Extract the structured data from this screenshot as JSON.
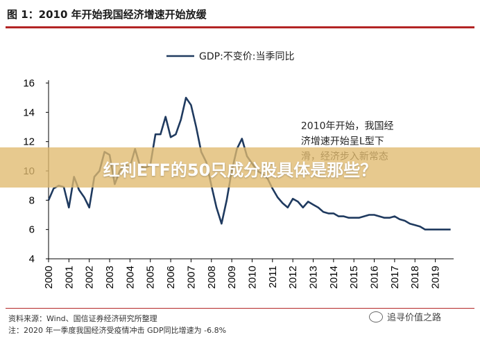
{
  "figure": {
    "title": "图 1：2010 年开始我国经济增速开始放缓",
    "source_line": "资料来源：Wind、国信证券经济研究所整理",
    "note_line": "注：2020 年一季度我国经济受疫情冲击 GDP同比增速为 -6.8%",
    "banner": "红利ETF的50只成分股具体是那些？",
    "watermark": "追寻价值之路",
    "watermark_icon": "wechat-icon"
  },
  "chart_data": {
    "type": "line",
    "title": "",
    "xlabel": "",
    "ylabel": "",
    "xlim": [
      2000,
      2019.9
    ],
    "ylim": [
      4,
      16
    ],
    "yticks": [
      4,
      6,
      8,
      10,
      12,
      14,
      16
    ],
    "xticks": [
      "2000",
      "2001",
      "2002",
      "2003",
      "2004",
      "2005",
      "2006",
      "2007",
      "2008",
      "2009",
      "2010",
      "2011",
      "2012",
      "2013",
      "2014",
      "2015",
      "2016",
      "2017",
      "2018",
      "2019"
    ],
    "grid": false,
    "legend": "top-center",
    "line_color": "#1f3a5f",
    "series": [
      {
        "name": "GDP:不变价:当季同比",
        "x": [
          2000.0,
          2000.25,
          2000.5,
          2000.75,
          2001.0,
          2001.25,
          2001.5,
          2001.75,
          2002.0,
          2002.25,
          2002.5,
          2002.75,
          2003.0,
          2003.25,
          2003.5,
          2003.75,
          2004.0,
          2004.25,
          2004.5,
          2004.75,
          2005.0,
          2005.25,
          2005.5,
          2005.75,
          2006.0,
          2006.25,
          2006.5,
          2006.75,
          2007.0,
          2007.25,
          2007.5,
          2007.75,
          2008.0,
          2008.25,
          2008.5,
          2008.75,
          2009.0,
          2009.25,
          2009.5,
          2009.75,
          2010.0,
          2010.25,
          2010.5,
          2010.75,
          2011.0,
          2011.25,
          2011.5,
          2011.75,
          2012.0,
          2012.25,
          2012.5,
          2012.75,
          2013.0,
          2013.25,
          2013.5,
          2013.75,
          2014.0,
          2014.25,
          2014.5,
          2014.75,
          2015.0,
          2015.25,
          2015.5,
          2015.75,
          2016.0,
          2016.25,
          2016.5,
          2016.75,
          2017.0,
          2017.25,
          2017.5,
          2017.75,
          2018.0,
          2018.25,
          2018.5,
          2018.75,
          2019.0,
          2019.25,
          2019.5,
          2019.75
        ],
        "values": [
          8.0,
          8.8,
          9.0,
          8.9,
          7.5,
          9.6,
          8.7,
          8.2,
          7.5,
          9.6,
          10.0,
          11.3,
          11.1,
          9.1,
          10.0,
          10.4,
          10.3,
          11.5,
          10.3,
          10.2,
          10.4,
          12.5,
          12.5,
          13.7,
          12.3,
          12.5,
          13.5,
          15.0,
          14.5,
          13.0,
          11.3,
          10.6,
          9.0,
          7.5,
          6.4,
          8.0,
          10.0,
          11.5,
          12.2,
          11.0,
          10.5,
          10.0,
          9.8,
          9.5,
          8.8,
          8.2,
          7.8,
          7.5,
          8.1,
          7.9,
          7.5,
          7.9,
          7.7,
          7.5,
          7.2,
          7.1,
          7.1,
          6.9,
          6.9,
          6.8,
          6.8,
          6.8,
          6.9,
          7.0,
          7.0,
          6.9,
          6.8,
          6.8,
          6.9,
          6.7,
          6.6,
          6.4,
          6.3,
          6.2,
          6.0,
          6.0,
          6.0,
          6.0,
          6.0,
          6.0
        ]
      }
    ],
    "annotation": {
      "lines": [
        "2010年开始，我国经",
        "济增速开始呈L型下",
        "滑，经济步入新常态"
      ],
      "anchor_x": 2012.4,
      "anchor_y": 12.85
    }
  }
}
